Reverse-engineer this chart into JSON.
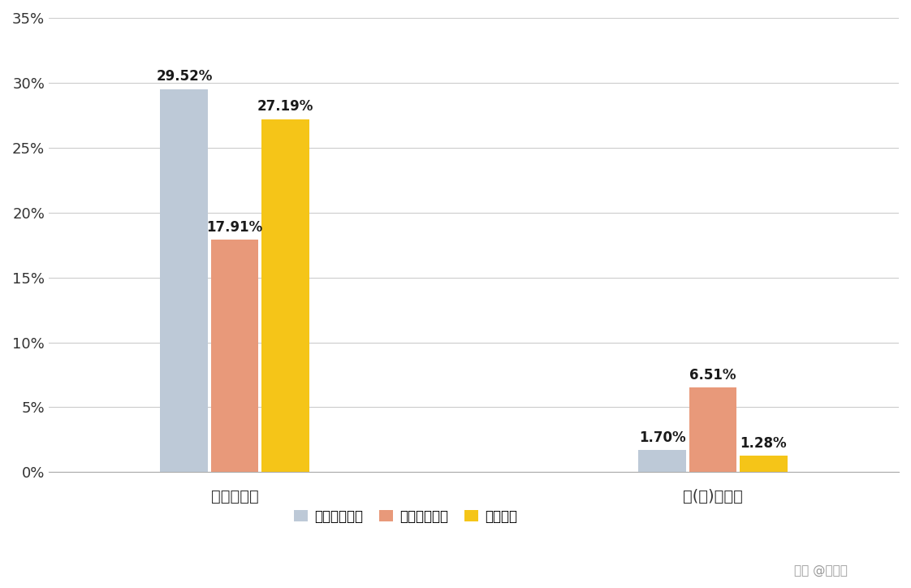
{
  "categories": [
    "国内升学率",
    "国(境)外升学"
  ],
  "universities": [
    "太原理工大学",
    "山西财经大学",
    "山西大学"
  ],
  "values": [
    [
      29.52,
      17.91,
      27.19
    ],
    [
      1.7,
      6.51,
      1.28
    ]
  ],
  "bar_colors": [
    "#bdc9d7",
    "#e8997a",
    "#f5c518"
  ],
  "label_values": [
    [
      "29.52%",
      "17.91%",
      "27.19%"
    ],
    [
      "1.70%",
      "6.51%",
      "1.28%"
    ]
  ],
  "ylim": [
    0,
    0.35
  ],
  "yticks": [
    0,
    0.05,
    0.1,
    0.15,
    0.2,
    0.25,
    0.3,
    0.35
  ],
  "ytick_labels": [
    "0%",
    "5%",
    "10%",
    "15%",
    "20%",
    "25%",
    "30%",
    "35%"
  ],
  "background_color": "#ffffff",
  "grid_color": "#cccccc",
  "bar_width": 0.18,
  "annotation_fontsize": 12,
  "legend_fontsize": 12,
  "tick_fontsize": 13,
  "xlabel_fontsize": 14
}
